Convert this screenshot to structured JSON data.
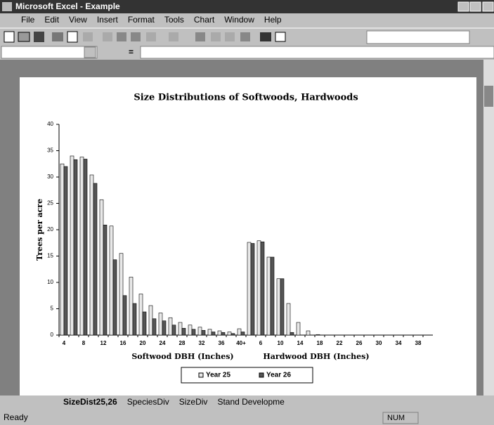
{
  "window": {
    "title": "Microsoft Excel - Example",
    "menu": [
      "File",
      "Edit",
      "View",
      "Insert",
      "Format",
      "Tools",
      "Chart",
      "Window",
      "Help"
    ],
    "formula_sign": "=",
    "tabs": [
      "SizeDist25,26",
      "SpeciesDiv",
      "SizeDiv",
      "Stand Developme"
    ],
    "status": "Ready",
    "num": "NUM"
  },
  "chart_data": {
    "type": "bar",
    "title": "Size Distributions of Softwoods, Hardwoods",
    "y_label": "Trees per acre",
    "x_label": "Softwood DBH (Inches)",
    "x_label_2": "Hardwood DBH (Inches)",
    "categories": [
      "4",
      null,
      "8",
      null,
      "12",
      null,
      "16",
      null,
      "20",
      null,
      "24",
      null,
      "28",
      null,
      "32",
      null,
      "36",
      null,
      "40+",
      null,
      "6",
      null,
      "10",
      null,
      "14",
      null,
      "18",
      null,
      "22",
      null,
      "26",
      null,
      "30",
      null,
      "34",
      null,
      "38",
      null
    ],
    "series": [
      {
        "name": "Year 25",
        "color": "#e8e8e8",
        "values": [
          32.5,
          34,
          33.8,
          30.4,
          25.7,
          20.7,
          15.5,
          11,
          7.8,
          5.6,
          4.2,
          3.3,
          2.4,
          1.9,
          1.5,
          1.1,
          0.8,
          0.6,
          1.2,
          17.6,
          17.9,
          14.8,
          10.7,
          6,
          2.4,
          0.8,
          0.1,
          0,
          0,
          0,
          0,
          0,
          0,
          0,
          0,
          0,
          0,
          0
        ]
      },
      {
        "name": "Year 26",
        "color": "#555555",
        "values": [
          32,
          33.3,
          33.4,
          28.8,
          20.9,
          14.3,
          7.5,
          6,
          4.4,
          3.1,
          2.7,
          1.9,
          1.3,
          1.1,
          0.9,
          0.6,
          0.5,
          0.3,
          0.6,
          17.4,
          17.7,
          14.8,
          10.7,
          0.5,
          0,
          0,
          0,
          0,
          0,
          0,
          0,
          0,
          0,
          0,
          0,
          0,
          0,
          0
        ]
      }
    ],
    "ylim": [
      0,
      40
    ],
    "yticks": [
      0,
      5,
      10,
      15,
      20,
      25,
      30,
      35,
      40
    ],
    "legend": "bottom"
  }
}
